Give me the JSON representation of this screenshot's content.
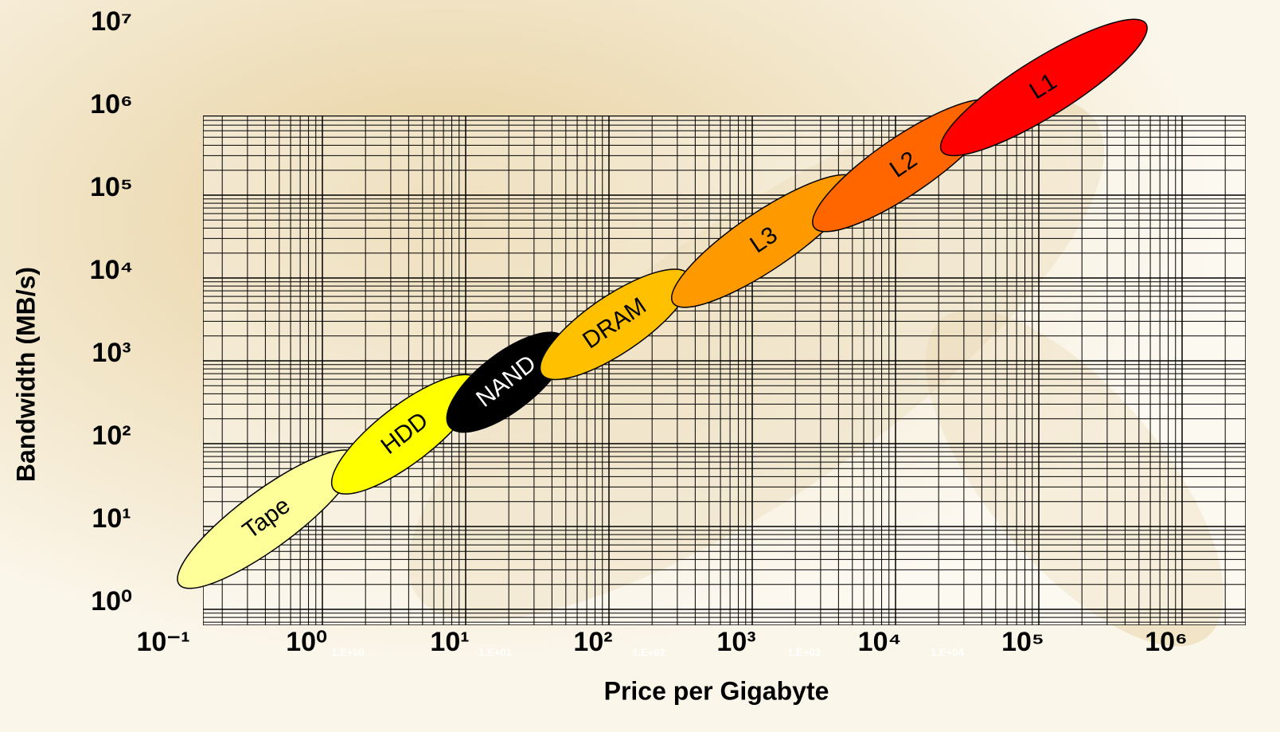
{
  "chart_data": {
    "type": "ellipse",
    "x_label": "Price per Gigabyte",
    "y_label": "Bandwidth (MB/s)",
    "log_scale": true,
    "grid": true,
    "xlim": [
      0.1,
      1000000
    ],
    "ylim": [
      1,
      10000000
    ],
    "xticks": [
      {
        "value": 0.1,
        "label": "10⁻¹"
      },
      {
        "value": 1,
        "label": "10⁰"
      },
      {
        "value": 10,
        "label": "10¹"
      },
      {
        "value": 100,
        "label": "10²"
      },
      {
        "value": 1000,
        "label": "10³"
      },
      {
        "value": 10000,
        "label": "10⁴"
      },
      {
        "value": 100000,
        "label": "10⁵"
      },
      {
        "value": 1000000,
        "label": "10⁶"
      }
    ],
    "yticks": [
      {
        "value": 1,
        "label": "10⁰"
      },
      {
        "value": 10,
        "label": "10¹"
      },
      {
        "value": 100,
        "label": "10²"
      },
      {
        "value": 1000,
        "label": "10³"
      },
      {
        "value": 10000,
        "label": "10⁴"
      },
      {
        "value": 100000,
        "label": "10⁵"
      },
      {
        "value": 1000000,
        "label": "10⁶"
      },
      {
        "value": 10000000,
        "label": "10⁷"
      }
    ],
    "annotations": [
      "1.E+00",
      "1.E+01",
      "1.E+02",
      "1.E+03",
      "1.E+04"
    ],
    "series": [
      {
        "name": "Tape",
        "color": "#ffff99",
        "x": [
          0.1,
          1.7
        ],
        "values": [
          2,
          75
        ]
      },
      {
        "name": "HDD",
        "color": "#ffff00",
        "x": [
          1.2,
          12
        ],
        "values": [
          28,
          600
        ]
      },
      {
        "name": "NAND",
        "color": "#000000",
        "label_color": "#ffffff",
        "x": [
          7.7,
          49
        ],
        "values": [
          160,
          1900
        ]
      },
      {
        "name": "DRAM",
        "color": "#ffc000",
        "x": [
          34,
          360
        ],
        "values": [
          690,
          11000
        ]
      },
      {
        "name": "L3",
        "color": "#ff9900",
        "x": [
          280,
          5300
        ],
        "values": [
          5000,
          156000
        ]
      },
      {
        "name": "L2",
        "color": "#ff6600",
        "x": [
          2700,
          49000
        ],
        "values": [
          41000,
          1260000
        ]
      },
      {
        "name": "L1",
        "color": "#ff0000",
        "x": [
          21000,
          560000
        ],
        "values": [
          340000,
          11700000
        ]
      }
    ]
  }
}
